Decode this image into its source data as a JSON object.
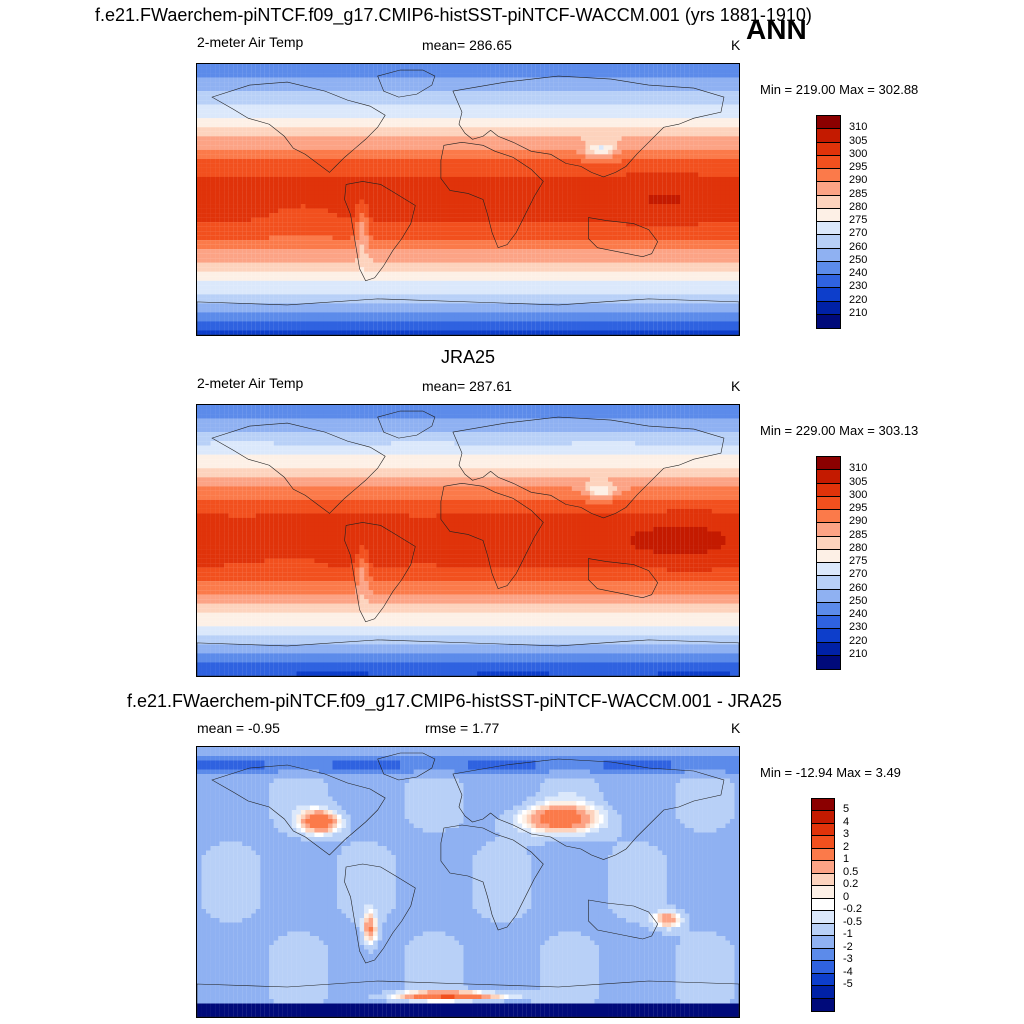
{
  "main_title": "f.e21.FWaerchem-piNTCF.f09_g17.CMIP6-histSST-piNTCF-WACCM.001 (yrs 1881-1910)",
  "season": "ANN",
  "panels": [
    {
      "id": "model",
      "heading": "",
      "left_text": "2-meter Air Temp",
      "center_text": "mean= 286.65",
      "units": "K",
      "minmax": "Min = 219.00 Max = 302.88",
      "colorbar": {
        "labels": [
          "310",
          "305",
          "300",
          "295",
          "290",
          "285",
          "280",
          "275",
          "270",
          "260",
          "250",
          "240",
          "230",
          "220",
          "210"
        ],
        "colors": [
          "#8b0000",
          "#c41a00",
          "#e0330a",
          "#f2501e",
          "#fb7a4a",
          "#fca385",
          "#fdd3bd",
          "#fdf0e6",
          "#dbe8fb",
          "#b8d0f7",
          "#8fb1f2",
          "#5c8bea",
          "#2f62e0",
          "#0d3ecb",
          "#0021a6",
          "#000a7a"
        ]
      },
      "field": "temperature"
    },
    {
      "id": "obs",
      "heading": "JRA25",
      "left_text": "2-meter Air Temp",
      "center_text": "mean= 287.61",
      "units": "K",
      "minmax": "Min = 229.00 Max = 303.13",
      "colorbar": {
        "labels": [
          "310",
          "305",
          "300",
          "295",
          "290",
          "285",
          "280",
          "275",
          "270",
          "260",
          "250",
          "240",
          "230",
          "220",
          "210"
        ],
        "colors": [
          "#8b0000",
          "#c41a00",
          "#e0330a",
          "#f2501e",
          "#fb7a4a",
          "#fca385",
          "#fdd3bd",
          "#fdf0e6",
          "#dbe8fb",
          "#b8d0f7",
          "#8fb1f2",
          "#5c8bea",
          "#2f62e0",
          "#0d3ecb",
          "#0021a6",
          "#000a7a"
        ]
      },
      "field": "temperature"
    },
    {
      "id": "diff",
      "heading": "f.e21.FWaerchem-piNTCF.f09_g17.CMIP6-histSST-piNTCF-WACCM.001 - JRA25",
      "left_text": "mean =  -0.95",
      "center_text": "rmse =   1.77",
      "units": "K",
      "minmax": "Min = -12.94 Max =   3.49",
      "colorbar": {
        "labels": [
          "5",
          "4",
          "3",
          "2",
          "1",
          "0.5",
          "0.2",
          "0",
          "-0.2",
          "-0.5",
          "-1",
          "-2",
          "-3",
          "-4",
          "-5"
        ],
        "colors": [
          "#8b0000",
          "#c41a00",
          "#e0330a",
          "#f2501e",
          "#fb7a4a",
          "#fca385",
          "#fdd3bd",
          "#fdf0e6",
          "#ffffff",
          "#dbe8fb",
          "#b8d0f7",
          "#8fb1f2",
          "#5c8bea",
          "#2f62e0",
          "#0d3ecb",
          "#0021a6",
          "#000a7a"
        ]
      },
      "field": "difference"
    }
  ]
}
